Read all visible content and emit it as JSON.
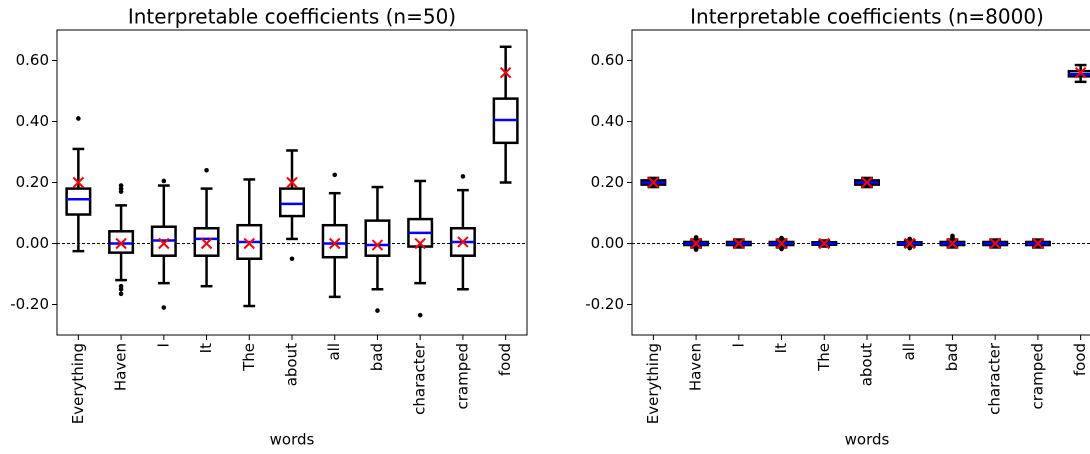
{
  "chart_data": [
    {
      "type": "box",
      "title": "Interpretable coefficients (n=50)",
      "xlabel": "words",
      "categories": [
        "Everything",
        "Haven",
        "I",
        "It",
        "The",
        "about",
        "all",
        "bad",
        "character",
        "cramped",
        "food"
      ],
      "boxes": [
        {
          "whislo": -0.025,
          "q1": 0.095,
          "med": 0.145,
          "q3": 0.18,
          "whishi": 0.31,
          "mean": 0.2,
          "fliers": [
            0.41
          ]
        },
        {
          "whislo": -0.12,
          "q1": -0.03,
          "med": 0.0,
          "q3": 0.04,
          "whishi": 0.125,
          "mean": 0.0,
          "fliers": [
            0.19,
            0.18,
            0.17,
            -0.14,
            -0.15,
            -0.165
          ]
        },
        {
          "whislo": -0.13,
          "q1": -0.04,
          "med": 0.01,
          "q3": 0.055,
          "whishi": 0.19,
          "mean": 0.0,
          "fliers": [
            0.205,
            -0.21
          ]
        },
        {
          "whislo": -0.14,
          "q1": -0.04,
          "med": 0.015,
          "q3": 0.05,
          "whishi": 0.18,
          "mean": 0.0,
          "fliers": [
            0.24
          ]
        },
        {
          "whislo": -0.205,
          "q1": -0.05,
          "med": 0.005,
          "q3": 0.06,
          "whishi": 0.21,
          "mean": 0.0,
          "fliers": []
        },
        {
          "whislo": 0.015,
          "q1": 0.09,
          "med": 0.13,
          "q3": 0.18,
          "whishi": 0.305,
          "mean": 0.2,
          "fliers": [
            -0.05
          ]
        },
        {
          "whislo": -0.175,
          "q1": -0.045,
          "med": 0.0,
          "q3": 0.06,
          "whishi": 0.165,
          "mean": 0.0,
          "fliers": [
            0.225
          ]
        },
        {
          "whislo": -0.15,
          "q1": -0.04,
          "med": -0.005,
          "q3": 0.075,
          "whishi": 0.185,
          "mean": -0.005,
          "fliers": [
            -0.22
          ]
        },
        {
          "whislo": -0.13,
          "q1": -0.01,
          "med": 0.035,
          "q3": 0.08,
          "whishi": 0.205,
          "mean": 0.0,
          "fliers": [
            -0.235
          ]
        },
        {
          "whislo": -0.15,
          "q1": -0.04,
          "med": 0.005,
          "q3": 0.05,
          "whishi": 0.175,
          "mean": 0.005,
          "fliers": [
            0.22
          ]
        },
        {
          "whislo": 0.2,
          "q1": 0.33,
          "med": 0.405,
          "q3": 0.475,
          "whishi": 0.645,
          "mean": 0.56,
          "fliers": []
        }
      ],
      "ylim": [
        -0.3,
        0.7
      ],
      "yticks": [
        {
          "value": -0.2,
          "label": "-0.20"
        },
        {
          "value": 0,
          "label": "0.00"
        },
        {
          "value": 0.2,
          "label": "0.20"
        },
        {
          "value": 0.4,
          "label": "0.40"
        },
        {
          "value": 0.6,
          "label": "0.60"
        }
      ],
      "reference_line": 0,
      "box_color": "#000000",
      "median_color": "#0000ff",
      "mean_color": "#ff0000"
    },
    {
      "type": "box",
      "title": "Interpretable coefficients (n=8000)",
      "xlabel": "words",
      "categories": [
        "Everything",
        "Haven",
        "I",
        "It",
        "The",
        "about",
        "all",
        "bad",
        "character",
        "cramped",
        "food"
      ],
      "boxes": [
        {
          "whislo": 0.185,
          "q1": 0.193,
          "med": 0.2,
          "q3": 0.207,
          "whishi": 0.215,
          "mean": 0.2,
          "fliers": []
        },
        {
          "whislo": -0.013,
          "q1": -0.005,
          "med": 0.0,
          "q3": 0.005,
          "whishi": 0.013,
          "mean": 0.0,
          "fliers": [
            0.02,
            -0.02
          ]
        },
        {
          "whislo": -0.013,
          "q1": -0.005,
          "med": 0.0,
          "q3": 0.005,
          "whishi": 0.013,
          "mean": 0.0,
          "fliers": []
        },
        {
          "whislo": -0.013,
          "q1": -0.005,
          "med": 0.0,
          "q3": 0.005,
          "whishi": 0.013,
          "mean": 0.0,
          "fliers": [
            0.018,
            -0.018
          ]
        },
        {
          "whislo": -0.01,
          "q1": -0.004,
          "med": 0.0,
          "q3": 0.004,
          "whishi": 0.01,
          "mean": 0.0,
          "fliers": []
        },
        {
          "whislo": 0.185,
          "q1": 0.193,
          "med": 0.2,
          "q3": 0.207,
          "whishi": 0.215,
          "mean": 0.2,
          "fliers": []
        },
        {
          "whislo": -0.01,
          "q1": -0.004,
          "med": 0.0,
          "q3": 0.004,
          "whishi": 0.01,
          "mean": 0.0,
          "fliers": [
            0.015,
            -0.015
          ]
        },
        {
          "whislo": -0.013,
          "q1": -0.005,
          "med": 0.0,
          "q3": 0.005,
          "whishi": 0.013,
          "mean": 0.0,
          "fliers": [
            0.025,
            0.02
          ]
        },
        {
          "whislo": -0.013,
          "q1": -0.005,
          "med": 0.0,
          "q3": 0.005,
          "whishi": 0.013,
          "mean": 0.0,
          "fliers": []
        },
        {
          "whislo": -0.013,
          "q1": -0.005,
          "med": 0.0,
          "q3": 0.005,
          "whishi": 0.013,
          "mean": 0.0,
          "fliers": []
        },
        {
          "whislo": 0.53,
          "q1": 0.548,
          "med": 0.555,
          "q3": 0.565,
          "whishi": 0.585,
          "mean": 0.56,
          "fliers": []
        }
      ],
      "ylim": [
        -0.3,
        0.7
      ],
      "yticks": [
        {
          "value": -0.2,
          "label": "-0.20"
        },
        {
          "value": 0,
          "label": "0.00"
        },
        {
          "value": 0.2,
          "label": "0.20"
        },
        {
          "value": 0.4,
          "label": "0.40"
        },
        {
          "value": 0.6,
          "label": "0.60"
        }
      ],
      "reference_line": 0,
      "box_color": "#000000",
      "median_color": "#0000ff",
      "mean_color": "#ff0000"
    }
  ]
}
